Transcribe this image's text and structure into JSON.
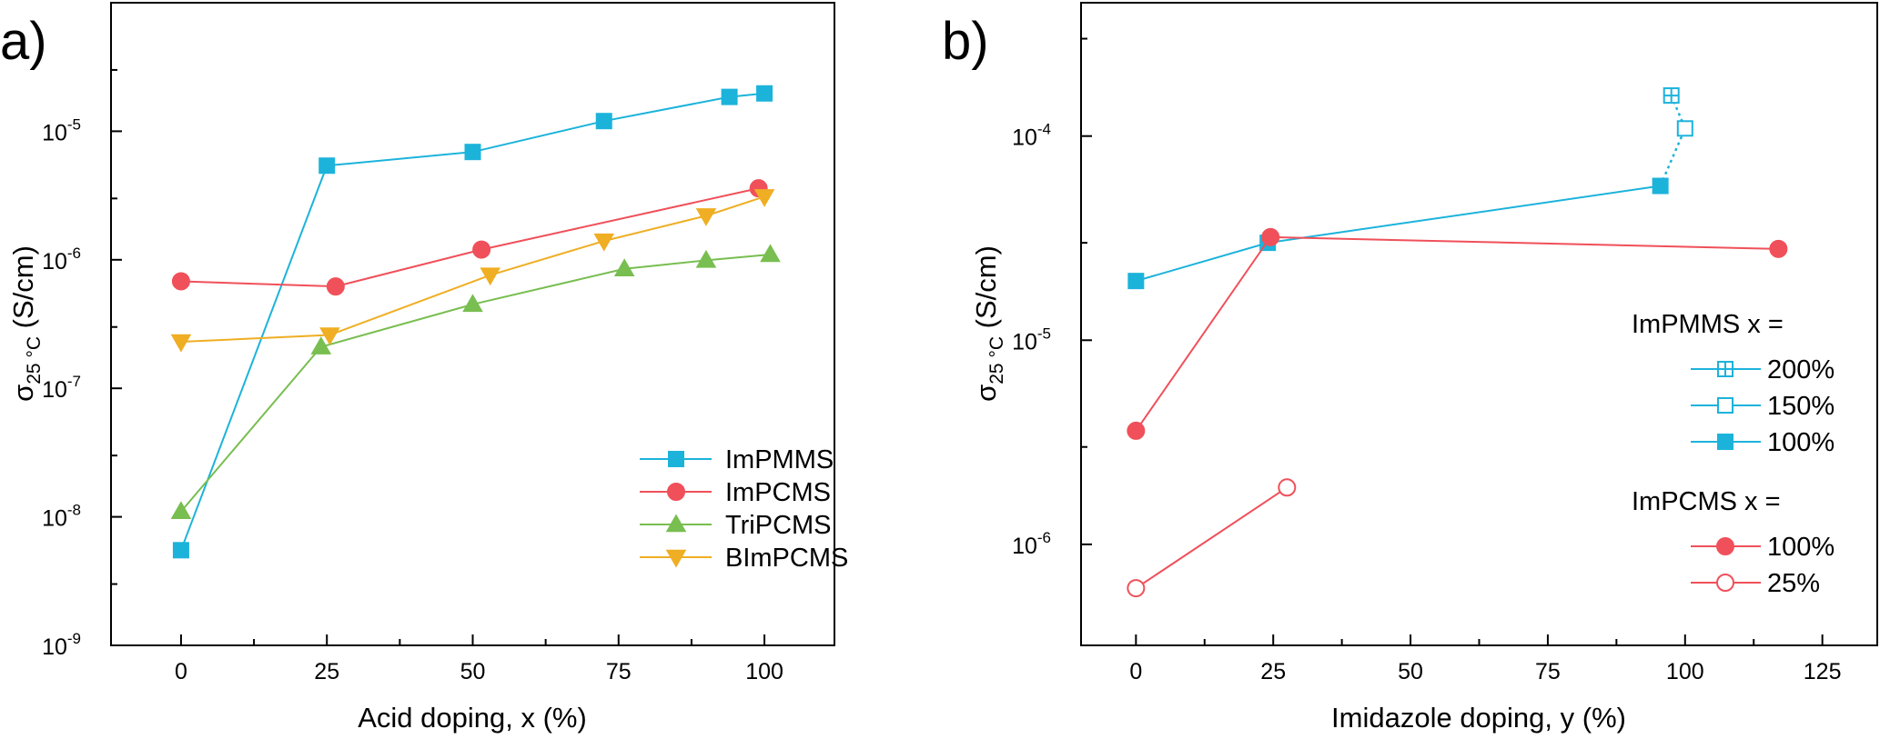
{
  "chart_data": [
    {
      "type": "line",
      "panel": "a)",
      "xlabel": "Acid doping, x (%)",
      "ylabel_main": "σ",
      "ylabel_sub": "25 °C",
      "ylabel_unit": " (S/cm)",
      "xlim": [
        -12,
        112
      ],
      "ylim": [
        1e-09,
        0.0001
      ],
      "yscale": "log",
      "xticks": [
        0,
        25,
        50,
        75,
        100
      ],
      "xtick_labels": [
        "0",
        "25",
        "50",
        "75",
        "100"
      ],
      "yticks": [
        1e-09,
        1e-08,
        1e-07,
        1e-06,
        1e-05
      ],
      "ytick_labels": [
        {
          "base": "10",
          "exp": "-9"
        },
        {
          "base": "10",
          "exp": "-8"
        },
        {
          "base": "10",
          "exp": "-7"
        },
        {
          "base": "10",
          "exp": "-6"
        },
        {
          "base": "10",
          "exp": "-5"
        }
      ],
      "grid": false,
      "legend_position": "bottom-right",
      "series": [
        {
          "name": "ImPMMS",
          "color": "#1CB3DB",
          "marker": "square",
          "fill": "filled",
          "x": [
            0,
            25,
            50,
            72.5,
            94,
            100
          ],
          "y": [
            5.5e-09,
            5.4e-06,
            6.9e-06,
            1.2e-05,
            1.85e-05,
            1.97e-05
          ]
        },
        {
          "name": "ImPCMS",
          "color": "#F0505A",
          "marker": "circle",
          "fill": "filled",
          "x": [
            0,
            26.5,
            51.5,
            99
          ],
          "y": [
            6.8e-07,
            6.2e-07,
            1.2e-06,
            3.6e-06
          ]
        },
        {
          "name": "TriPCMS",
          "color": "#78BE50",
          "marker": "triangle-up",
          "fill": "filled",
          "x": [
            0,
            24,
            50,
            76,
            90,
            101
          ],
          "y": [
            1.1e-08,
            2.1e-07,
            4.5e-07,
            8.5e-07,
            9.9e-07,
            1.1e-06
          ]
        },
        {
          "name": "BImPCMS",
          "color": "#EFAE23",
          "marker": "triangle-down",
          "fill": "filled",
          "x": [
            0,
            25.5,
            53,
            72.5,
            90,
            100
          ],
          "y": [
            2.3e-07,
            2.6e-07,
            7.6e-07,
            1.4e-06,
            2.2e-06,
            3.1e-06
          ]
        }
      ]
    },
    {
      "type": "line",
      "panel": "b)",
      "xlabel": "Imidazole doping, y (%)",
      "ylabel_main": "σ",
      "ylabel_sub": "25 °C",
      "ylabel_unit": " (S/cm)",
      "xlim": [
        -10,
        135
      ],
      "ylim": [
        3.2e-07,
        0.00045
      ],
      "yscale": "log",
      "xticks": [
        0,
        25,
        50,
        75,
        100,
        125
      ],
      "xtick_labels": [
        "0",
        "25",
        "50",
        "75",
        "100",
        "125"
      ],
      "yticks": [
        1e-06,
        1e-05,
        0.0001
      ],
      "ytick_labels": [
        {
          "base": "10",
          "exp": "-6"
        },
        {
          "base": "10",
          "exp": "-5"
        },
        {
          "base": "10",
          "exp": "-4"
        }
      ],
      "grid": false,
      "legend_position": "right",
      "legend_groups": [
        {
          "title": "ImPMMS  x =",
          "entries": [
            {
              "label": "200%",
              "series": 0
            },
            {
              "label": "150%",
              "series": 1
            },
            {
              "label": "100%",
              "series": 2
            }
          ]
        },
        {
          "title": "ImPCMS x =",
          "entries": [
            {
              "label": "100%",
              "series": 3
            },
            {
              "label": "25%",
              "series": 4
            }
          ]
        }
      ],
      "series": [
        {
          "name": "200%",
          "color": "#1CB3DB",
          "marker": "square",
          "fill": "crossed",
          "x": [
            97.5
          ],
          "y": [
            0.000158
          ]
        },
        {
          "name": "150%",
          "color": "#1CB3DB",
          "marker": "square",
          "fill": "open",
          "x": [
            100
          ],
          "y": [
            0.000109
          ]
        },
        {
          "name": "100%",
          "color": "#1CB3DB",
          "marker": "square",
          "fill": "filled",
          "x": [
            0,
            24,
            95.5
          ],
          "y": [
            1.95e-05,
            3e-05,
            5.7e-05
          ]
        },
        {
          "name": "100%",
          "color": "#F0505A",
          "marker": "circle",
          "fill": "filled",
          "x": [
            0,
            24.5,
            117
          ],
          "y": [
            3.6e-06,
            3.2e-05,
            2.8e-05
          ]
        },
        {
          "name": "25%",
          "color": "#F0505A",
          "marker": "circle",
          "fill": "open",
          "x": [
            0,
            27.5
          ],
          "y": [
            6.1e-07,
            1.9e-06
          ]
        }
      ],
      "connector": {
        "color": "#1CB3DB",
        "style": "dotted",
        "points": [
          {
            "x": 95.5,
            "y": 5.7e-05
          },
          {
            "x": 100,
            "y": 0.000109
          },
          {
            "x": 97.5,
            "y": 0.000158
          }
        ]
      }
    }
  ]
}
